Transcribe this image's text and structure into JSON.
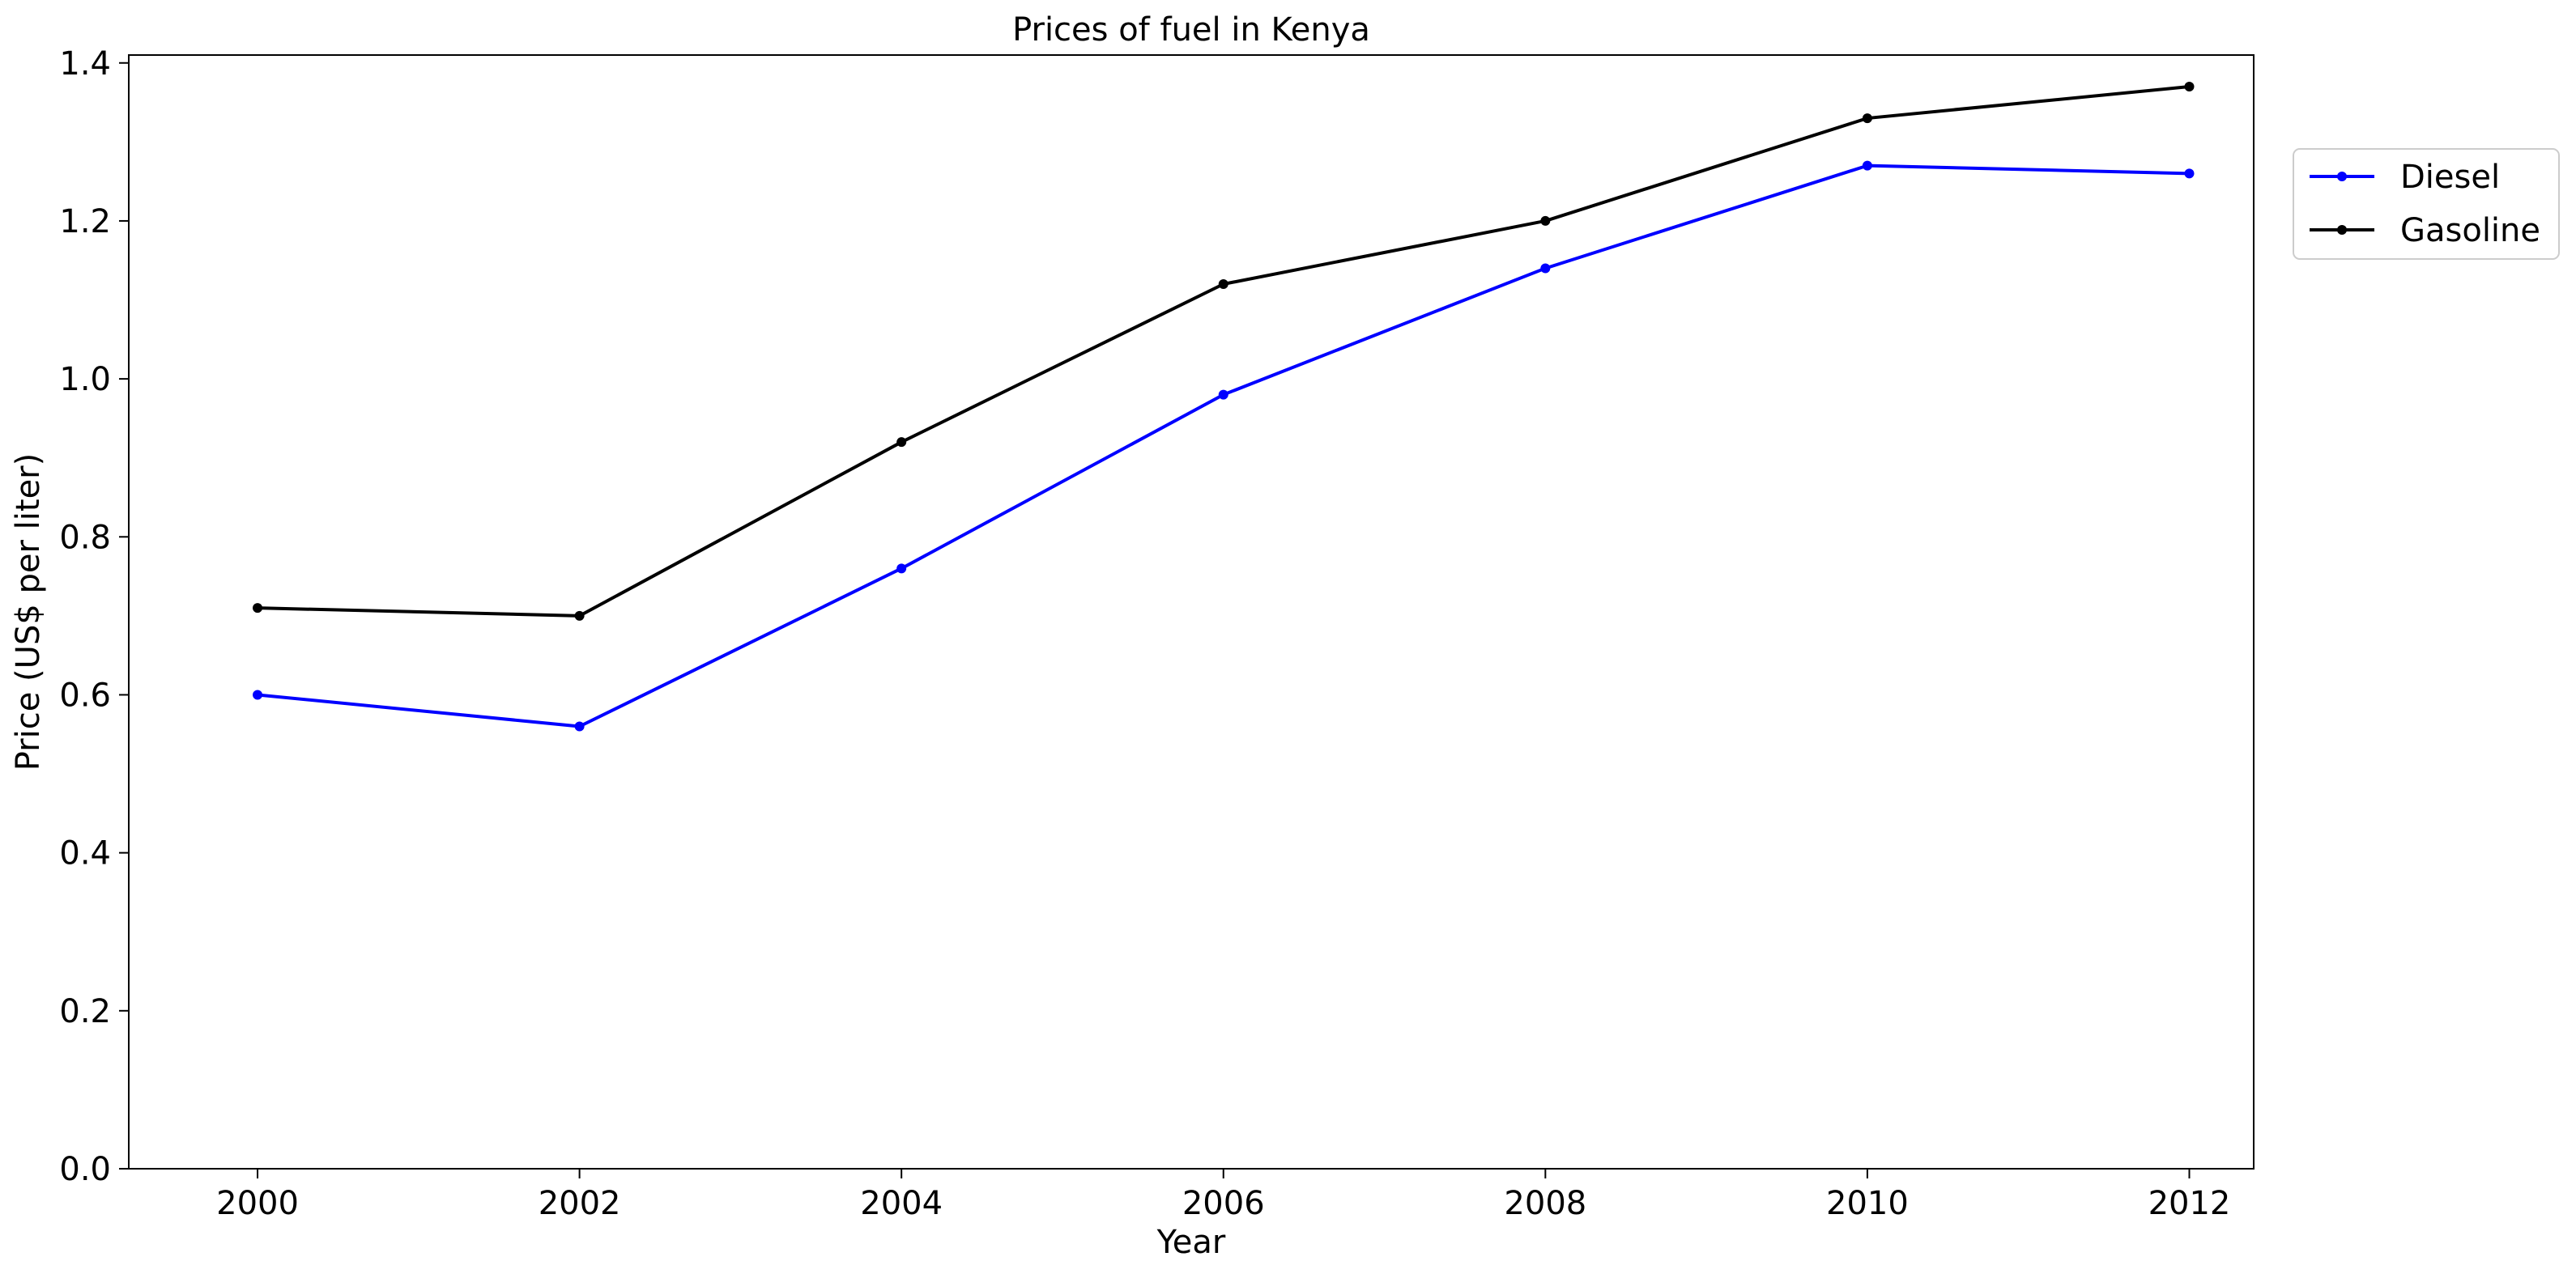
{
  "chart_data": {
    "type": "line",
    "title": "Prices of fuel in Kenya",
    "xlabel": "Year",
    "ylabel": "Price (US$ per liter)",
    "x": [
      2000,
      2002,
      2004,
      2006,
      2008,
      2010,
      2012
    ],
    "xticks": [
      "2000",
      "2002",
      "2004",
      "2006",
      "2008",
      "2010",
      "2012"
    ],
    "xlim": [
      1999.2,
      2012.4
    ],
    "ylim": [
      0.0,
      1.41
    ],
    "yticks": [
      "0.0",
      "0.2",
      "0.4",
      "0.6",
      "0.8",
      "1.0",
      "1.2",
      "1.4"
    ],
    "grid": false,
    "legend_position": "outside-right-top",
    "series": [
      {
        "name": "Diesel",
        "color": "#0000ff",
        "marker": "circle",
        "values": [
          0.6,
          0.56,
          0.76,
          0.98,
          1.14,
          1.27,
          1.26
        ]
      },
      {
        "name": "Gasoline",
        "color": "#000000",
        "marker": "circle",
        "values": [
          0.71,
          0.7,
          0.92,
          1.12,
          1.2,
          1.33,
          1.37
        ]
      }
    ]
  }
}
